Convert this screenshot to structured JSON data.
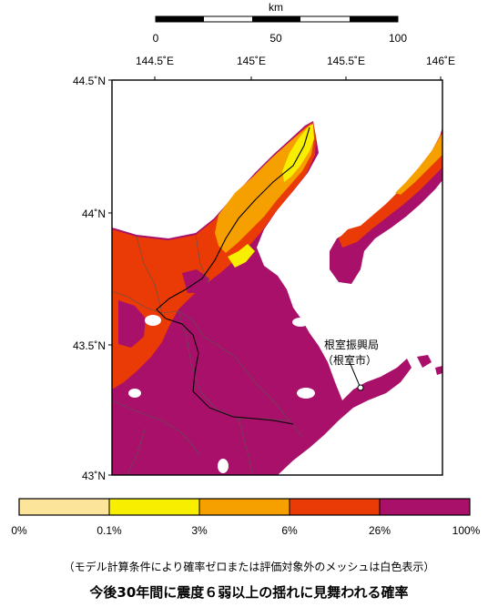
{
  "scale_bar": {
    "unit": "km",
    "ticks": [
      "0",
      "50",
      "100"
    ]
  },
  "longitude_labels": [
    "144.5˚E",
    "145˚E",
    "145.5˚E",
    "146˚E"
  ],
  "latitude_labels": [
    "44.5˚N",
    "44˚N",
    "43.5˚N",
    "43˚N"
  ],
  "annotation": {
    "line1": "根室振興局",
    "line2": "（根室市）"
  },
  "legend": {
    "labels": [
      "0%",
      "0.1%",
      "3%",
      "6%",
      "26%",
      "100%"
    ],
    "colors": [
      "#fce49a",
      "#f8ee00",
      "#f6a000",
      "#ea3a06",
      "#a8106a"
    ]
  },
  "caption": {
    "note": "（モデル計算条件により確率ゼロまたは評価対象外のメッシュは白色表示）",
    "title": "今後30年間に震度６弱以上の揺れに見舞われる確率"
  }
}
